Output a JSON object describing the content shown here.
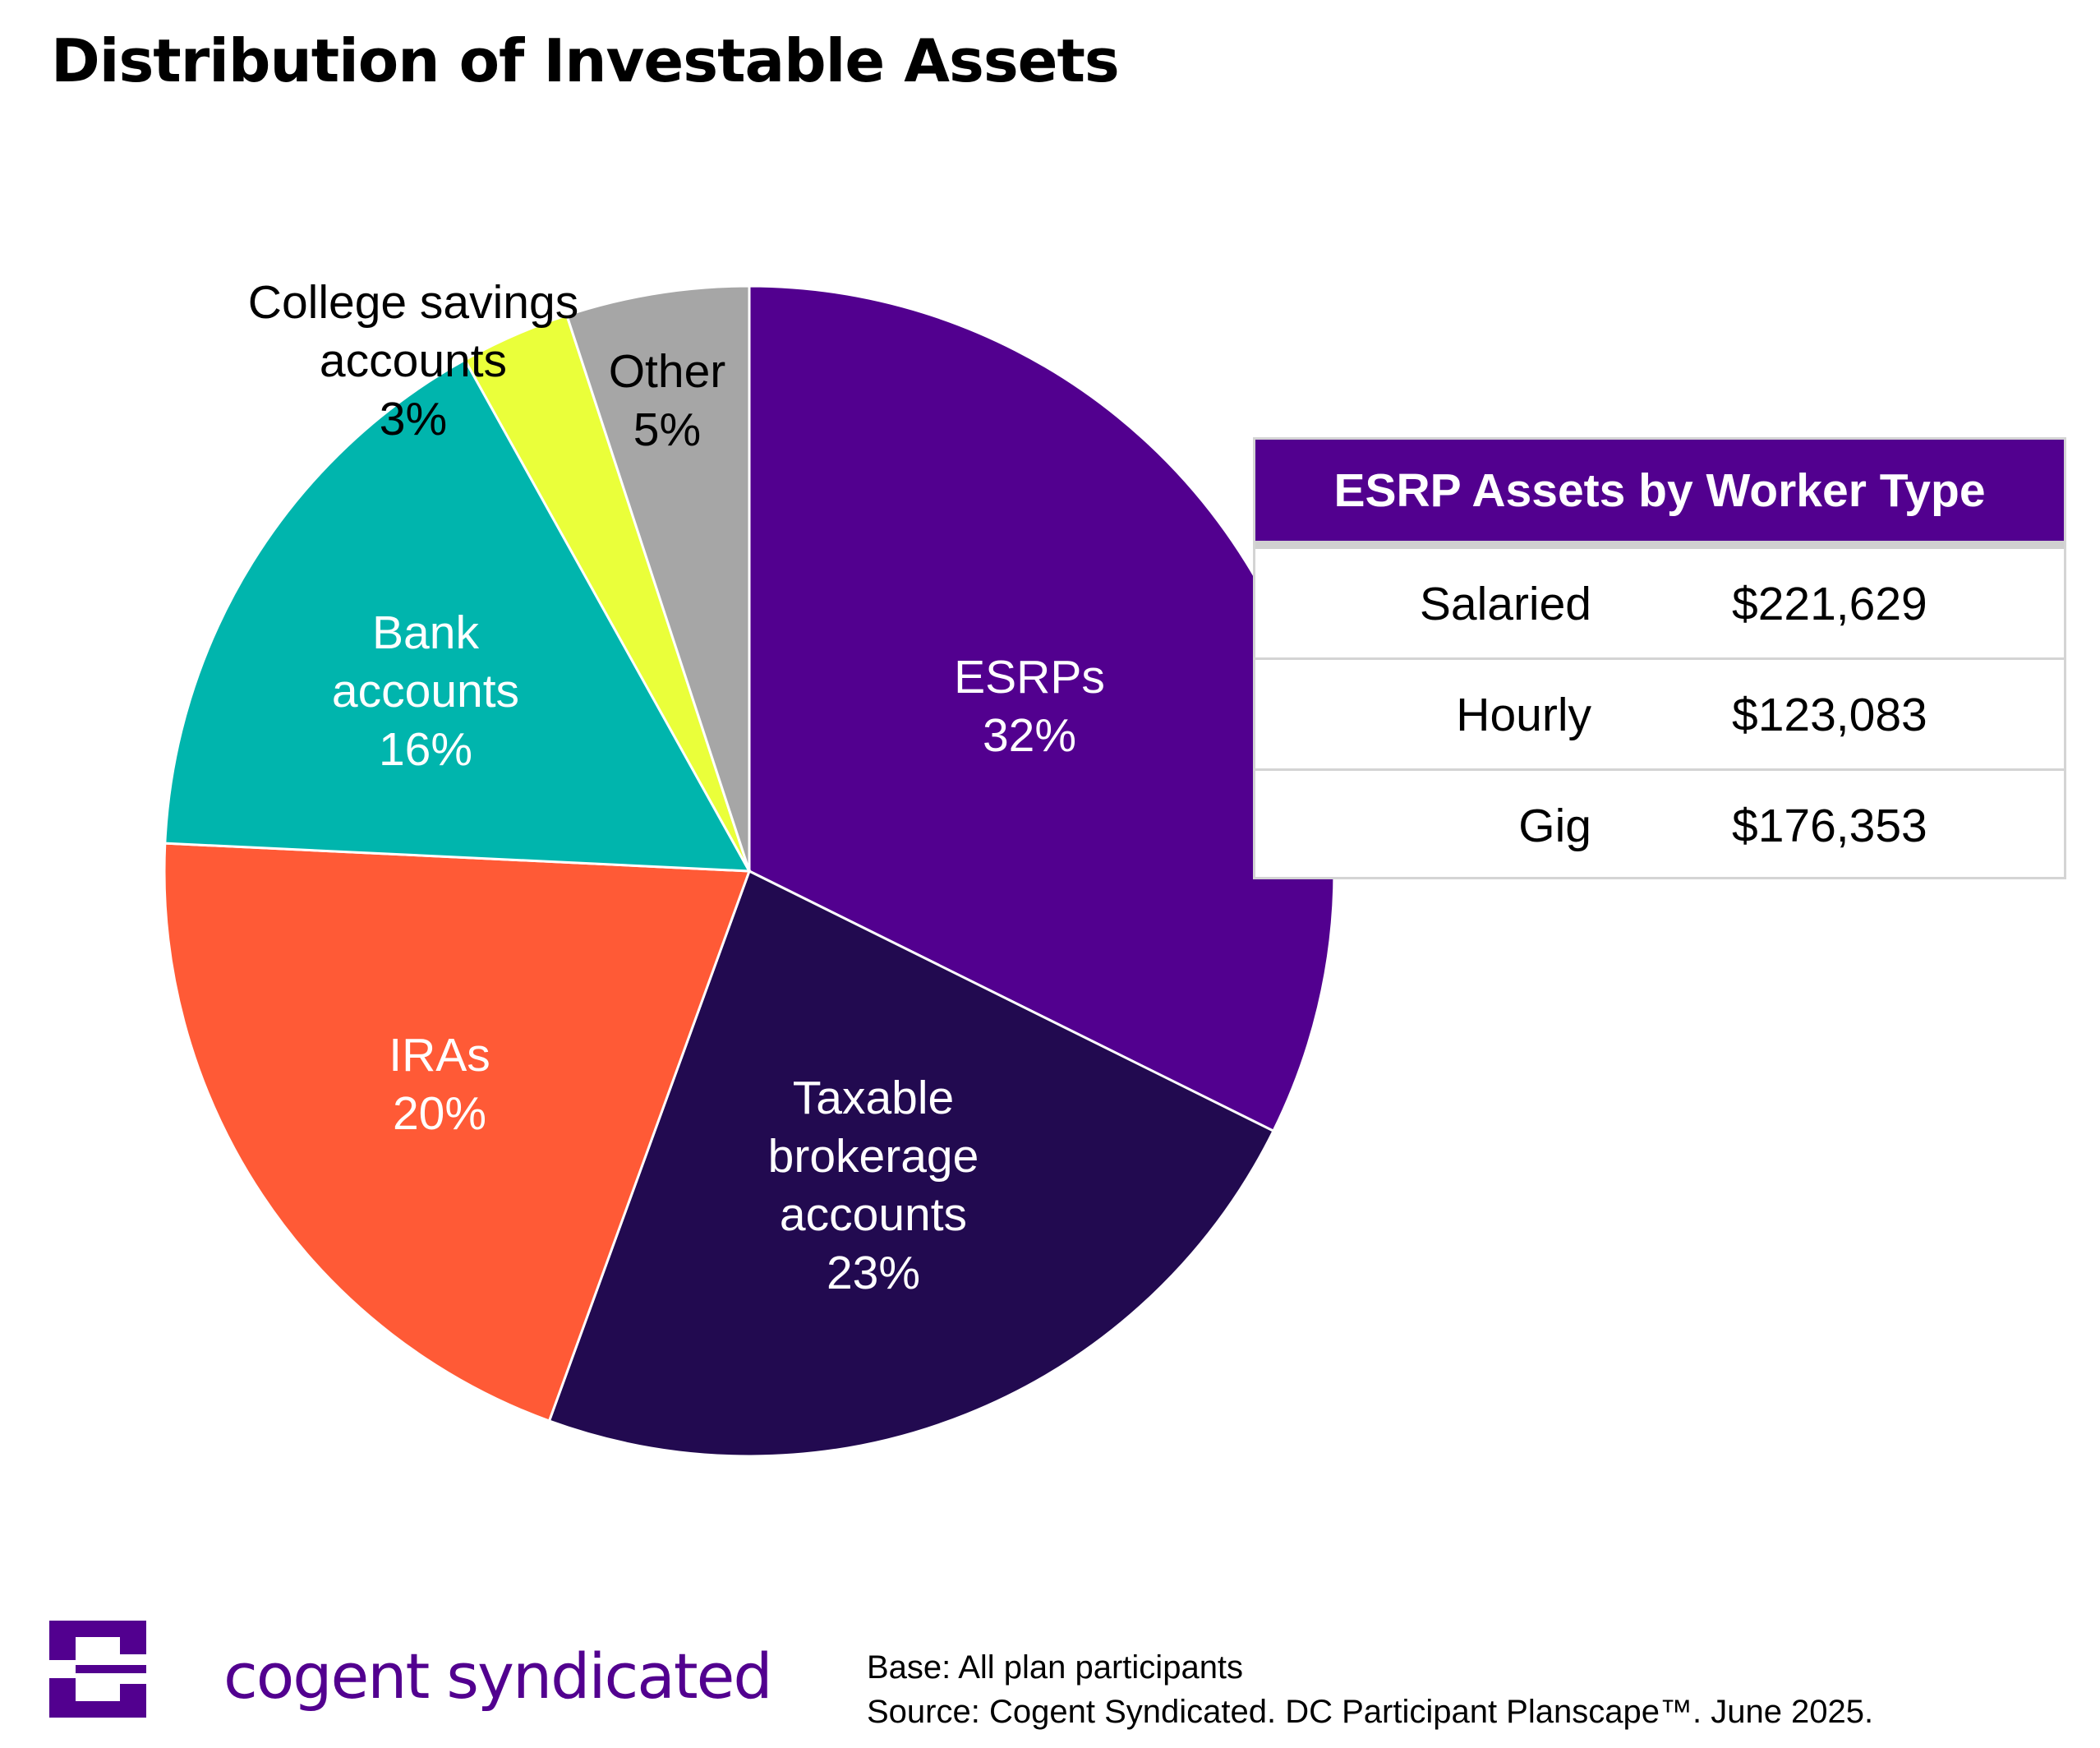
{
  "title": "Distribution of Investable Assets",
  "chart_data": {
    "type": "pie",
    "title": "Distribution of Investable Assets",
    "slices": [
      {
        "label": [
          "ESRPs"
        ],
        "value_label": "32%",
        "value": 32,
        "color": "#52008f",
        "label_color": "#ffffff"
      },
      {
        "label": [
          "Taxable",
          "brokerage",
          "accounts"
        ],
        "value_label": "23%",
        "value": 23,
        "color": "#220a50",
        "label_color": "#ffffff"
      },
      {
        "label": [
          "IRAs"
        ],
        "value_label": "20%",
        "value": 20,
        "color": "#ff5a36",
        "label_color": "#ffffff"
      },
      {
        "label": [
          "Bank",
          "accounts"
        ],
        "value_label": "16%",
        "value": 16,
        "color": "#00b5ad",
        "label_color": "#ffffff"
      },
      {
        "label": [
          "College savings",
          "accounts"
        ],
        "value_label": "3%",
        "value": 3,
        "color": "#eaff3a",
        "label_color": "#000000"
      },
      {
        "label": [
          "Other"
        ],
        "value_label": "5%",
        "value": 5,
        "color": "#a6a6a6",
        "label_color": "#000000"
      }
    ],
    "start": "12 o'clock",
    "direction": "clockwise"
  },
  "table": {
    "title": "ESRP Assets by Worker Type",
    "rows": [
      {
        "type": "Salaried",
        "value": "$221,629"
      },
      {
        "type": "Hourly",
        "value": "$123,083"
      },
      {
        "type": "Gig",
        "value": "$176,353"
      }
    ]
  },
  "brand": "cogent syndicated",
  "footnote": {
    "base": "Base: All plan participants",
    "source": "Source: Cogent Syndicated. DC Participant Planscape™. June 2025."
  },
  "colors": {
    "brand_purple": "#52008f"
  }
}
